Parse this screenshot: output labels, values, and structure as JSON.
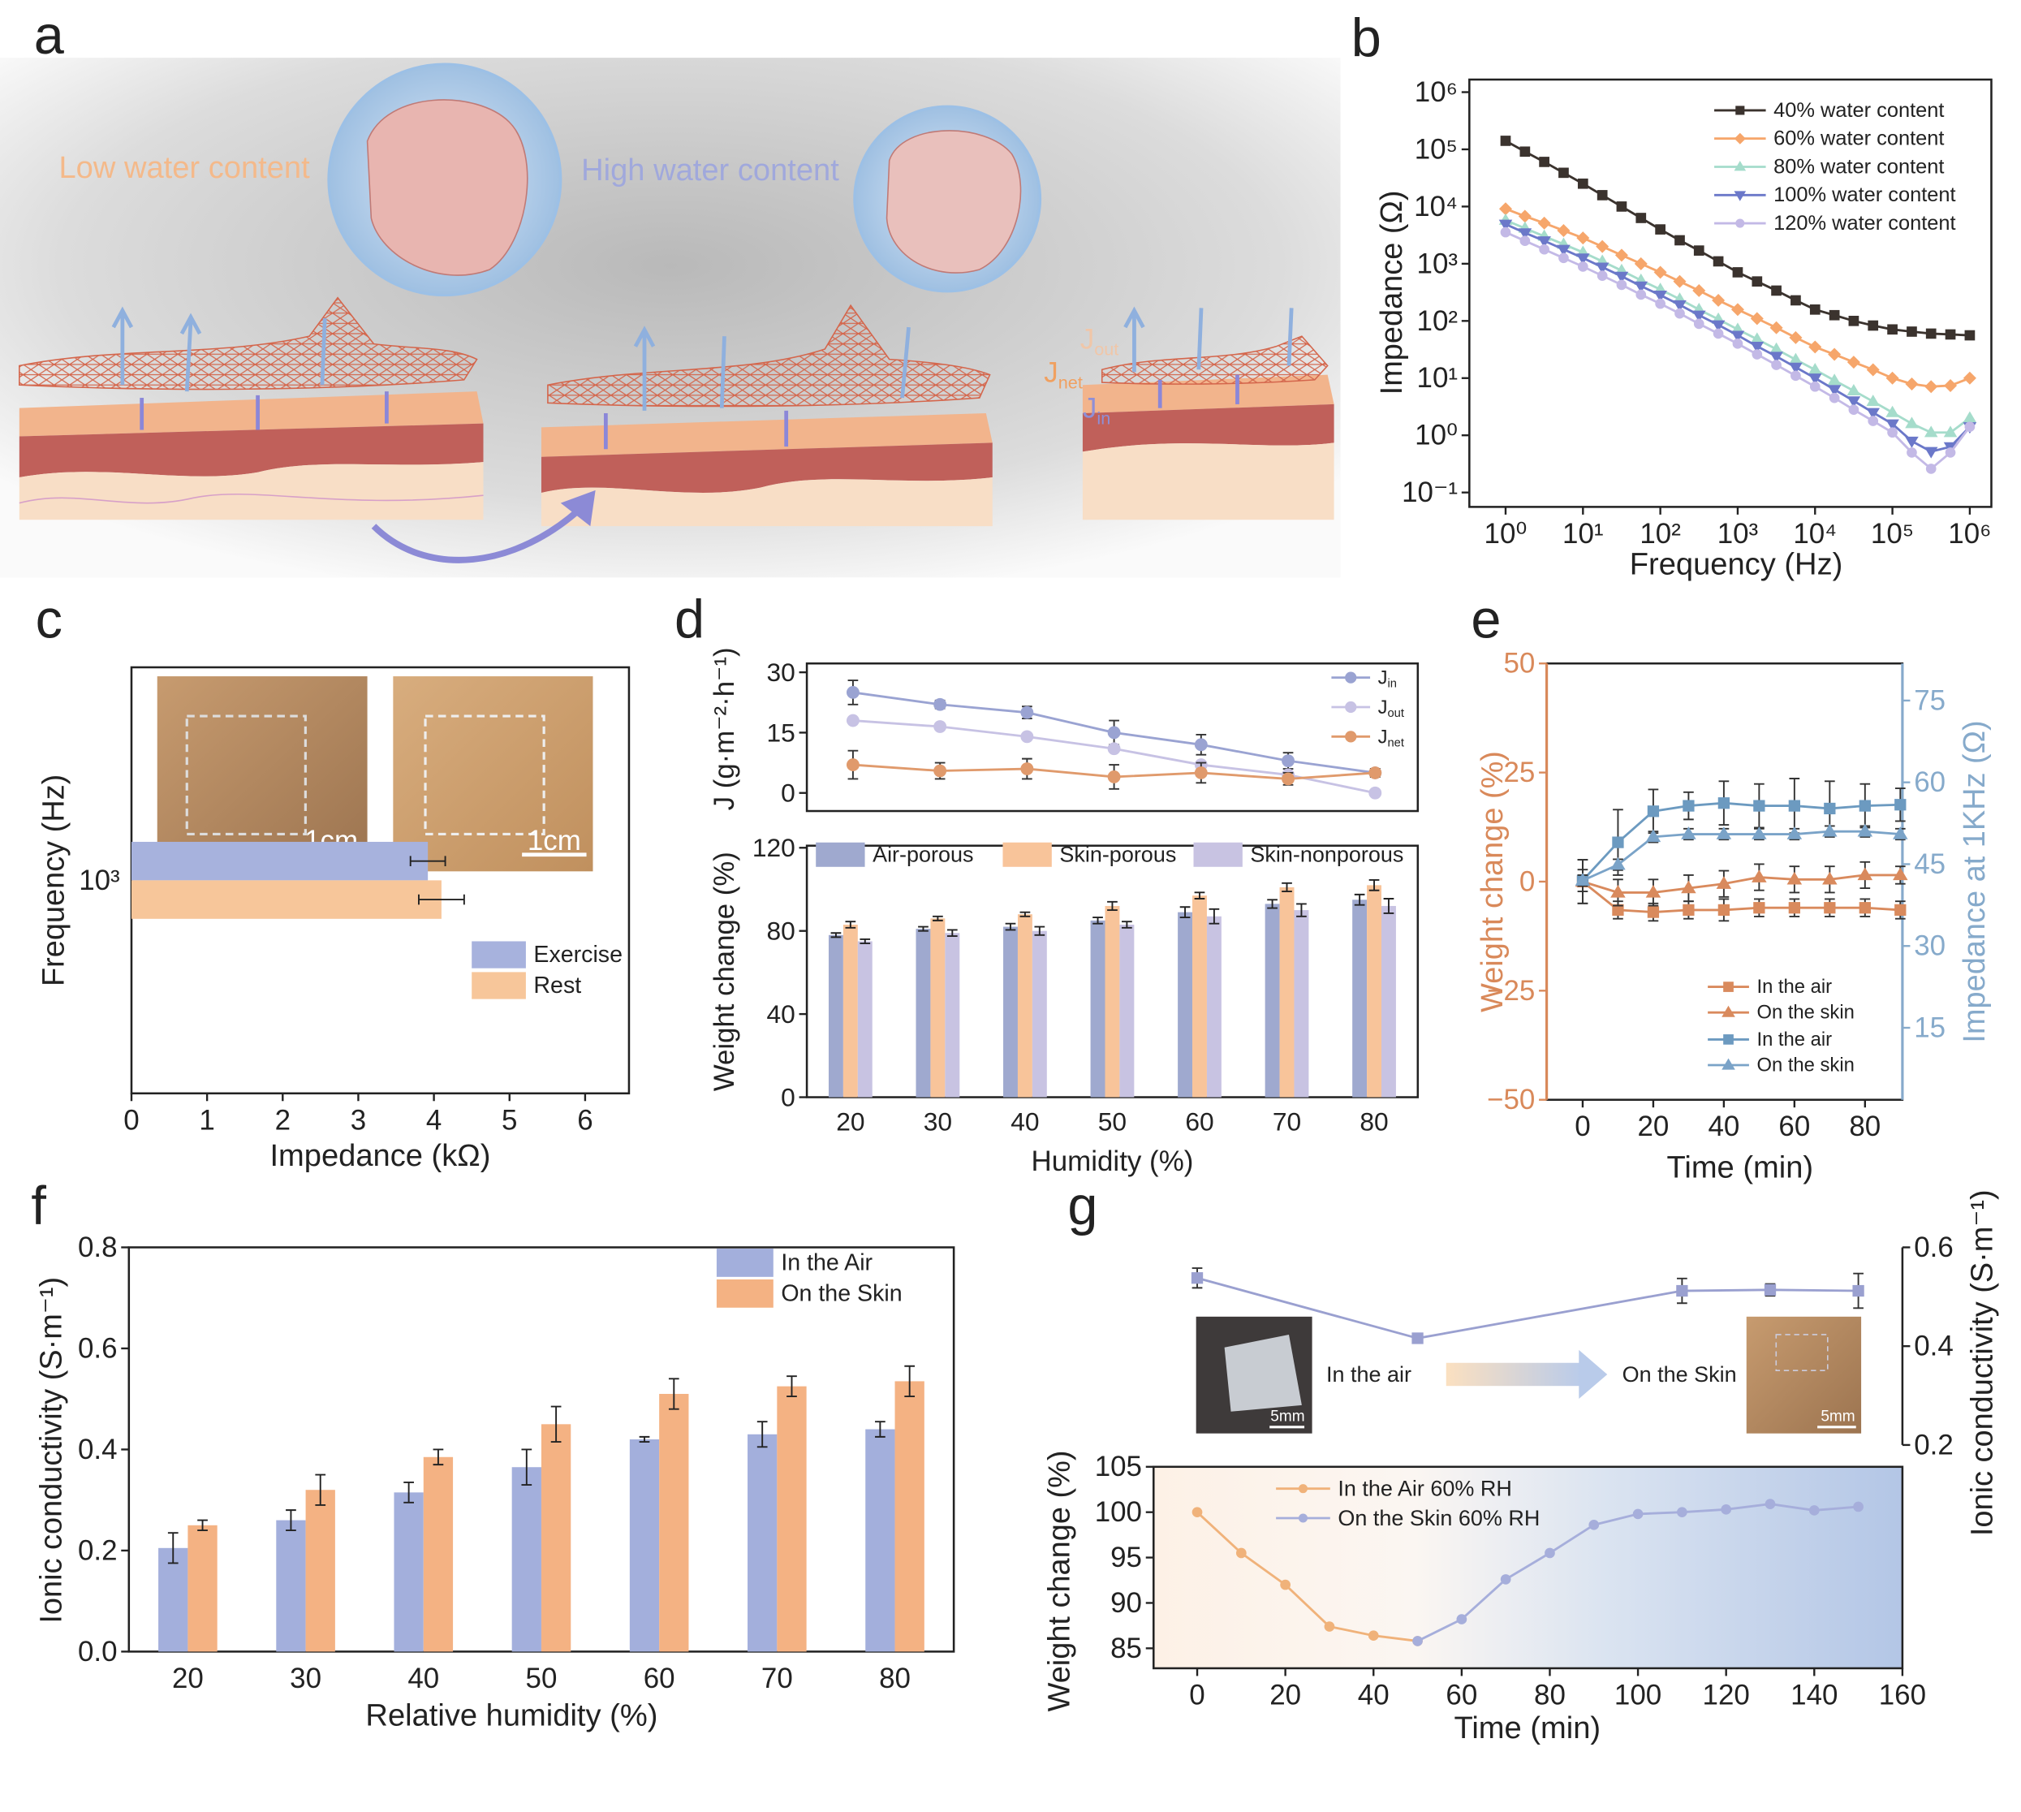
{
  "illustration": {
    "panel": "a",
    "labels": [
      "Low water content",
      "High water content"
    ],
    "flux_labels": [
      "Jout",
      "Jnet",
      "Jin"
    ]
  },
  "chart_data": [
    {
      "panel": "b",
      "type": "line",
      "x_label": "Frequency (Hz)",
      "y_label": "Impedance (Ω)",
      "x_scale": "log",
      "y_scale": "log",
      "legend": "upper right",
      "x": [
        1,
        1.78,
        3.16,
        5.62,
        10,
        17.8,
        31.6,
        56.2,
        100,
        178,
        316,
        562,
        1000,
        1780,
        3160,
        5620,
        10000,
        17800,
        31600,
        56200,
        100000,
        178000,
        316000,
        562000,
        1000000
      ],
      "xlim": [
        0.34,
        1900000
      ],
      "ylim": [
        0.056,
        1660000
      ],
      "xticks": [
        {
          "value": 1,
          "label": "10⁰"
        },
        {
          "value": 10,
          "label": "10¹"
        },
        {
          "value": 100,
          "label": "10²"
        },
        {
          "value": 1000,
          "label": "10³"
        },
        {
          "value": 10000,
          "label": "10⁴"
        },
        {
          "value": 100000,
          "label": "10⁵"
        },
        {
          "value": 1000000,
          "label": "10⁶"
        }
      ],
      "yticks": [
        {
          "value": 0.1,
          "label": "10⁻¹"
        },
        {
          "value": 1,
          "label": "10⁰"
        },
        {
          "value": 10,
          "label": "10¹"
        },
        {
          "value": 100,
          "label": "10²"
        },
        {
          "value": 1000,
          "label": "10³"
        },
        {
          "value": 10000,
          "label": "10⁴"
        },
        {
          "value": 100000,
          "label": "10⁵"
        },
        {
          "value": 1000000,
          "label": "10⁶"
        }
      ],
      "series": [
        {
          "name": "40% water content",
          "color": "#3b332e",
          "marker": "square",
          "values": [
            141000,
            91200,
            60300,
            38900,
            25100,
            15800,
            10000,
            6310,
            3980,
            2570,
            1700,
            1100,
            708,
            490,
            339,
            229,
            158,
            126,
            100,
            83,
            71,
            65,
            60,
            58,
            56
          ]
        },
        {
          "name": "60% water content",
          "color": "#f6a66b",
          "marker": "diamond",
          "values": [
            9120,
            6760,
            5130,
            3800,
            2820,
            2000,
            1410,
            1000,
            708,
            490,
            339,
            229,
            158,
            110,
            76,
            51,
            35,
            26,
            19,
            14,
            10,
            7.9,
            7.1,
            7.4,
            10
          ]
        },
        {
          "name": "80% water content",
          "color": "#a5dccb",
          "marker": "triangle",
          "values": [
            5750,
            4170,
            3020,
            2190,
            1580,
            1100,
            759,
            513,
            355,
            240,
            158,
            107,
            71,
            48,
            32,
            21,
            14,
            9.1,
            6.0,
            3.9,
            2.5,
            1.6,
            1.12,
            1.12,
            2.0
          ]
        },
        {
          "name": "100% water content",
          "color": "#6b78c9",
          "marker": "triangle-down",
          "values": [
            4900,
            3470,
            2510,
            1780,
            1260,
            871,
            603,
            407,
            282,
            191,
            126,
            85,
            56,
            36,
            24,
            15.5,
            10,
            6.3,
            4.0,
            2.5,
            1.58,
            0.79,
            0.52,
            0.63,
            1.41
          ]
        },
        {
          "name": "120% water content",
          "color": "#c3b9e6",
          "marker": "circle",
          "values": [
            3550,
            2510,
            1780,
            1260,
            891,
            617,
            427,
            288,
            200,
            135,
            89,
            60,
            40,
            26,
            17,
            11,
            7.1,
            4.5,
            2.8,
            1.78,
            1.12,
            0.5,
            0.26,
            0.5,
            1.41
          ]
        }
      ]
    },
    {
      "panel": "c",
      "type": "hbar",
      "x_label": "Impedance (kΩ)",
      "y_label": "Frequency (Hz)",
      "categories": [
        "10³"
      ],
      "xlim": [
        0,
        6.58
      ],
      "xticks": [
        0,
        1,
        2,
        3,
        4,
        5,
        6
      ],
      "legend": "right",
      "inset_labels": [
        "1cm",
        "1cm"
      ],
      "series": [
        {
          "name": "Exercise",
          "color": "#a7b2dd",
          "values": [
            3.92
          ],
          "errors": [
            0.23
          ]
        },
        {
          "name": "Rest",
          "color": "#f7c69a",
          "values": [
            4.1
          ],
          "errors": [
            0.3
          ]
        }
      ]
    },
    {
      "panel": "d",
      "type": "line",
      "y_label": "J (g·m⁻²·h⁻¹)",
      "legend": "upper right",
      "x": [
        20,
        30,
        40,
        50,
        60,
        70,
        80
      ],
      "xlim": [
        14.7,
        84.9
      ],
      "ylim": [
        -4.5,
        32.2
      ],
      "yticks": [
        0,
        15,
        30
      ],
      "series": [
        {
          "name": "Jin",
          "color": "#9aa3d2",
          "marker": "circle",
          "values": [
            25,
            22,
            20,
            15,
            12,
            8,
            5
          ],
          "errors": [
            3,
            1,
            1.5,
            3,
            2.5,
            2,
            1
          ]
        },
        {
          "name": "Jout",
          "color": "#c7c2e4",
          "marker": "circle",
          "values": [
            18,
            16.5,
            14,
            11,
            7,
            4.5,
            0
          ]
        },
        {
          "name": "Jnet",
          "color": "#e09a6c",
          "marker": "circle",
          "values": [
            7,
            5.5,
            6,
            4,
            5,
            3.5,
            5
          ],
          "errors": [
            3.5,
            2,
            2.5,
            3,
            2.5,
            1.5,
            1
          ]
        }
      ]
    },
    {
      "type": "bar",
      "x_label": "Humidity (%)",
      "y_label": "Weight change (%)",
      "legend": "top",
      "categories": [
        "20",
        "30",
        "40",
        "50",
        "60",
        "70",
        "80"
      ],
      "ylim": [
        0,
        121
      ],
      "yticks": [
        0,
        40,
        80,
        120
      ],
      "series": [
        {
          "name": "Air-porous",
          "color": "#9fa9cf",
          "values": [
            78,
            81,
            82,
            85,
            89,
            93,
            95
          ],
          "errors": [
            1,
            1,
            1.5,
            1.5,
            2.5,
            2,
            2.5
          ]
        },
        {
          "name": "Skin-porous",
          "color": "#f8c49a",
          "values": [
            83,
            86,
            88,
            92,
            97,
            101,
            102
          ],
          "errors": [
            1.5,
            1,
            1,
            2,
            1.5,
            2,
            2.5
          ]
        },
        {
          "name": "Skin-nonporous",
          "color": "#c8c3e2",
          "values": [
            75,
            79,
            80,
            83,
            87,
            90,
            92
          ],
          "errors": [
            1,
            1.5,
            2,
            1.5,
            3.5,
            3,
            3.5
          ]
        }
      ]
    },
    {
      "panel": "e",
      "type": "line",
      "x_label": "Time (min)",
      "y_label": "Weight change (%)",
      "y_color": "#d9895a",
      "y2_label": "Impedance at 1KHz (Ω)",
      "y2_color": "#86aacb",
      "legend": "lower right",
      "x": [
        0,
        10,
        20,
        30,
        40,
        50,
        60,
        70,
        80,
        90
      ],
      "xlim": [
        -10.2,
        90.6
      ],
      "xticks": [
        0,
        20,
        40,
        60,
        80
      ],
      "ylim": [
        -50,
        50
      ],
      "yticks": [
        {
          "value": -50,
          "label": "−50"
        },
        {
          "value": -25,
          "label": "−25"
        },
        0,
        25,
        50
      ],
      "y2lim": [
        1.8,
        81.8
      ],
      "y2ticks": [
        15,
        30,
        45,
        60,
        75
      ],
      "series": [
        {
          "name": "In the air",
          "color": "#d98a5d",
          "marker": "square",
          "values": [
            0,
            -6.5,
            -7,
            -6.5,
            -6.5,
            -6,
            -6,
            -6,
            -6,
            -6.5
          ],
          "errors": [
            5,
            2,
            2,
            2,
            2.5,
            2,
            2,
            2,
            2,
            2
          ]
        },
        {
          "name": "On the skin",
          "color": "#d98a5d",
          "marker": "triangle",
          "values": [
            0,
            -2.5,
            -2.5,
            -1.5,
            -0.5,
            1,
            0.5,
            0.5,
            1.5,
            1.5
          ],
          "errors": [
            5,
            3,
            3,
            3,
            3,
            3,
            3,
            3,
            3,
            2
          ]
        },
        {
          "name": "In the air",
          "color": "#6c9ac0",
          "marker": "square",
          "axis": "y2",
          "values": [
            42,
            49,
            54.7,
            55.7,
            56.2,
            55.7,
            55.7,
            55.2,
            55.7,
            55.9
          ],
          "errors": [
            2,
            6,
            4,
            2.5,
            4,
            4,
            5,
            5,
            4,
            3
          ]
        },
        {
          "name": "On the skin",
          "color": "#7aa3c8",
          "marker": "triangle",
          "axis": "y2",
          "values": [
            42,
            44.9,
            50,
            50.5,
            50.5,
            50.5,
            50.5,
            51,
            51,
            50.5
          ],
          "errors": [
            1,
            1,
            1,
            1,
            1,
            1,
            1,
            1,
            1,
            1
          ]
        }
      ]
    },
    {
      "panel": "f",
      "type": "bar",
      "x_label": "Relative humidity (%)",
      "y_label": "Ionic conductivity (S·m⁻¹)",
      "legend": "upper right",
      "categories": [
        "20",
        "30",
        "40",
        "50",
        "60",
        "70",
        "80"
      ],
      "ylim": [
        0,
        0.8
      ],
      "yticks": [
        {
          "value": 0,
          "label": "0.0"
        },
        0.2,
        0.4,
        0.6,
        0.8
      ],
      "series": [
        {
          "name": "In the Air",
          "color": "#a3afdc",
          "values": [
            0.205,
            0.26,
            0.315,
            0.365,
            0.42,
            0.43,
            0.44
          ],
          "errors": [
            0.03,
            0.02,
            0.02,
            0.035,
            0.005,
            0.025,
            0.015
          ]
        },
        {
          "name": "On the Skin",
          "color": "#f4b283",
          "values": [
            0.25,
            0.32,
            0.385,
            0.45,
            0.51,
            0.525,
            0.535
          ],
          "errors": [
            0.01,
            0.03,
            0.015,
            0.035,
            0.03,
            0.02,
            0.03
          ]
        }
      ]
    },
    {
      "panel": "g",
      "type": "line",
      "y2_label": "Ionic conductivity (S·m⁻¹)",
      "xlim": [
        -9.9,
        160
      ],
      "y2lim": [
        0.2,
        0.6
      ],
      "y2ticks": [
        0.2,
        0.4,
        0.6
      ],
      "annotations": [
        "In the air",
        "On the Skin"
      ],
      "scale_labels": [
        "5mm",
        "5mm"
      ],
      "series": [
        {
          "color": "#9aa0d0",
          "marker": "square",
          "axis": "y2",
          "x": [
            0,
            50,
            110,
            130,
            150
          ],
          "values": [
            0.538,
            0.416,
            0.512,
            0.514,
            0.512
          ],
          "errors": [
            0.02,
            0.004,
            0.025,
            0.012,
            0.035
          ]
        }
      ]
    },
    {
      "type": "line",
      "x_label": "Time (min)",
      "y_label": "Weight change (%)",
      "legend": "upper left",
      "xlim": [
        -9.9,
        160
      ],
      "xticks": [
        0,
        20,
        40,
        60,
        80,
        100,
        120,
        140,
        160
      ],
      "ylim": [
        82.8,
        105
      ],
      "yticks": [
        85,
        90,
        95,
        100,
        105
      ],
      "series": [
        {
          "name": "In the Air 60% RH",
          "color": "#f0b27a",
          "marker": "circle",
          "x": [
            0,
            10,
            20,
            30,
            40,
            50
          ],
          "values": [
            100,
            95.5,
            92,
            87.4,
            86.4,
            85.8
          ]
        },
        {
          "name": "On the Skin 60% RH",
          "color": "#a6aedb",
          "marker": "circle",
          "x": [
            50,
            60,
            70,
            80,
            90,
            100,
            110,
            120,
            130,
            140,
            150
          ],
          "values": [
            85.8,
            88.2,
            92.6,
            95.5,
            98.6,
            99.8,
            100,
            100.3,
            100.9,
            100.2,
            100.6
          ]
        }
      ]
    }
  ]
}
